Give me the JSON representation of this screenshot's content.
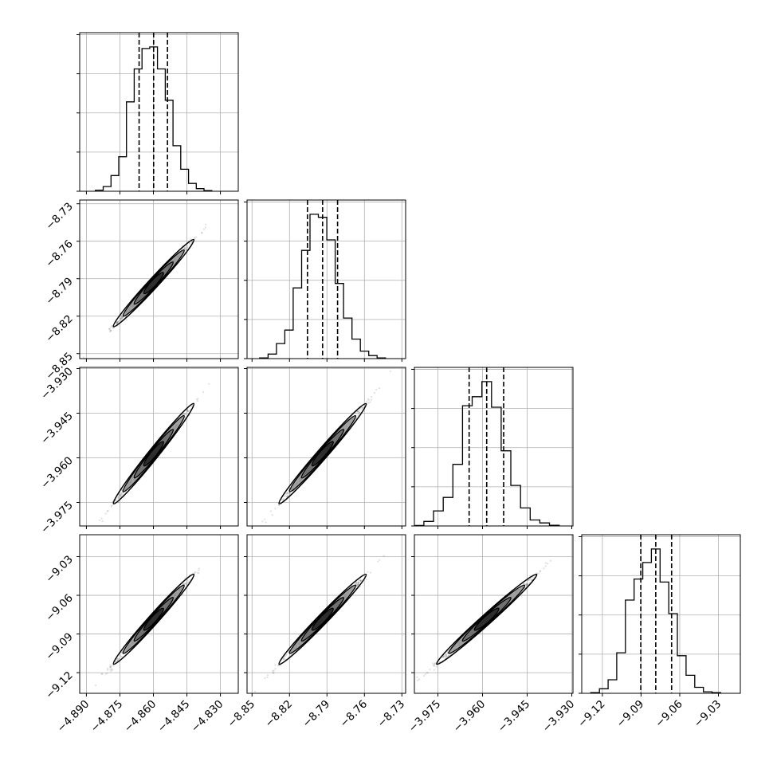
{
  "chart_data": {
    "type": "corner",
    "parameters": [
      {
        "index": 0,
        "range": [
          -4.893,
          -4.822
        ],
        "ticks": [
          -4.89,
          -4.875,
          -4.86,
          -4.845,
          -4.83
        ],
        "tick_labels": [
          "−4.890",
          "−4.875",
          "−4.860",
          "−4.845",
          "−4.830"
        ],
        "quantiles": [
          -4.8664,
          -4.8599,
          -4.8537
        ],
        "center": -4.8599,
        "sigma": 0.0062
      },
      {
        "index": 1,
        "range": [
          -8.854,
          -8.727
        ],
        "ticks": [
          -8.85,
          -8.82,
          -8.79,
          -8.76,
          -8.73
        ],
        "tick_labels": [
          "−8.85",
          "−8.82",
          "−8.79",
          "−8.76",
          "−8.73"
        ],
        "quantiles": [
          -8.8056,
          -8.7935,
          -8.7815
        ],
        "center": -8.7935,
        "sigma": 0.012
      },
      {
        "index": 2,
        "range": [
          -3.9829,
          -3.9296
        ],
        "ticks": [
          -3.975,
          -3.96,
          -3.945,
          -3.93
        ],
        "tick_labels": [
          "−3.975",
          "−3.960",
          "−3.945",
          "−3.930"
        ],
        "quantiles": [
          -3.9645,
          -3.9586,
          -3.9529
        ],
        "center": -3.9586,
        "sigma": 0.0058
      },
      {
        "index": 3,
        "range": [
          -9.136,
          -9.013
        ],
        "ticks": [
          -9.12,
          -9.09,
          -9.06,
          -9.03
        ],
        "tick_labels": [
          "−9.12",
          "−9.09",
          "−9.06",
          "−9.03"
        ],
        "quantiles": [
          -9.0902,
          -9.0786,
          -9.0663
        ],
        "center": -9.0786,
        "sigma": 0.012
      }
    ],
    "histograms": [
      {
        "param": 0,
        "bins": 20,
        "counts": [
          0.007,
          0.03,
          0.1,
          0.22,
          0.57,
          0.78,
          0.91,
          0.92,
          0.78,
          0.58,
          0.29,
          0.14,
          0.05,
          0.017,
          0.004,
          0.0,
          0.0,
          0.0,
          0.0,
          0.0
        ]
      },
      {
        "param": 1,
        "bins": 20,
        "counts": [
          0.004,
          0.03,
          0.1,
          0.19,
          0.47,
          0.72,
          0.96,
          0.94,
          0.79,
          0.5,
          0.27,
          0.13,
          0.05,
          0.02,
          0.005,
          0.0,
          0.0,
          0.0,
          0.0,
          0.0
        ]
      },
      {
        "param": 2,
        "bins": 20,
        "counts": [
          0.003,
          0.03,
          0.1,
          0.19,
          0.41,
          0.8,
          0.86,
          0.96,
          0.79,
          0.5,
          0.27,
          0.12,
          0.04,
          0.02,
          0.005,
          0.0,
          0.0,
          0.0,
          0.0,
          0.0
        ]
      },
      {
        "param": 3,
        "bins": 20,
        "counts": [
          0.005,
          0.03,
          0.09,
          0.27,
          0.62,
          0.76,
          0.87,
          0.96,
          0.74,
          0.53,
          0.25,
          0.12,
          0.04,
          0.01,
          0.005,
          0.0,
          0.0,
          0.0,
          0.0,
          0.0
        ]
      }
    ],
    "correlation": 0.995,
    "grid": true,
    "quantile_line_style": "dashed",
    "xlabel": "",
    "ylabel": ""
  },
  "colors": {
    "line": "#000000",
    "grid": "#b0b0b0",
    "points": "#000000",
    "contour_fill": "#9a9a9a"
  }
}
